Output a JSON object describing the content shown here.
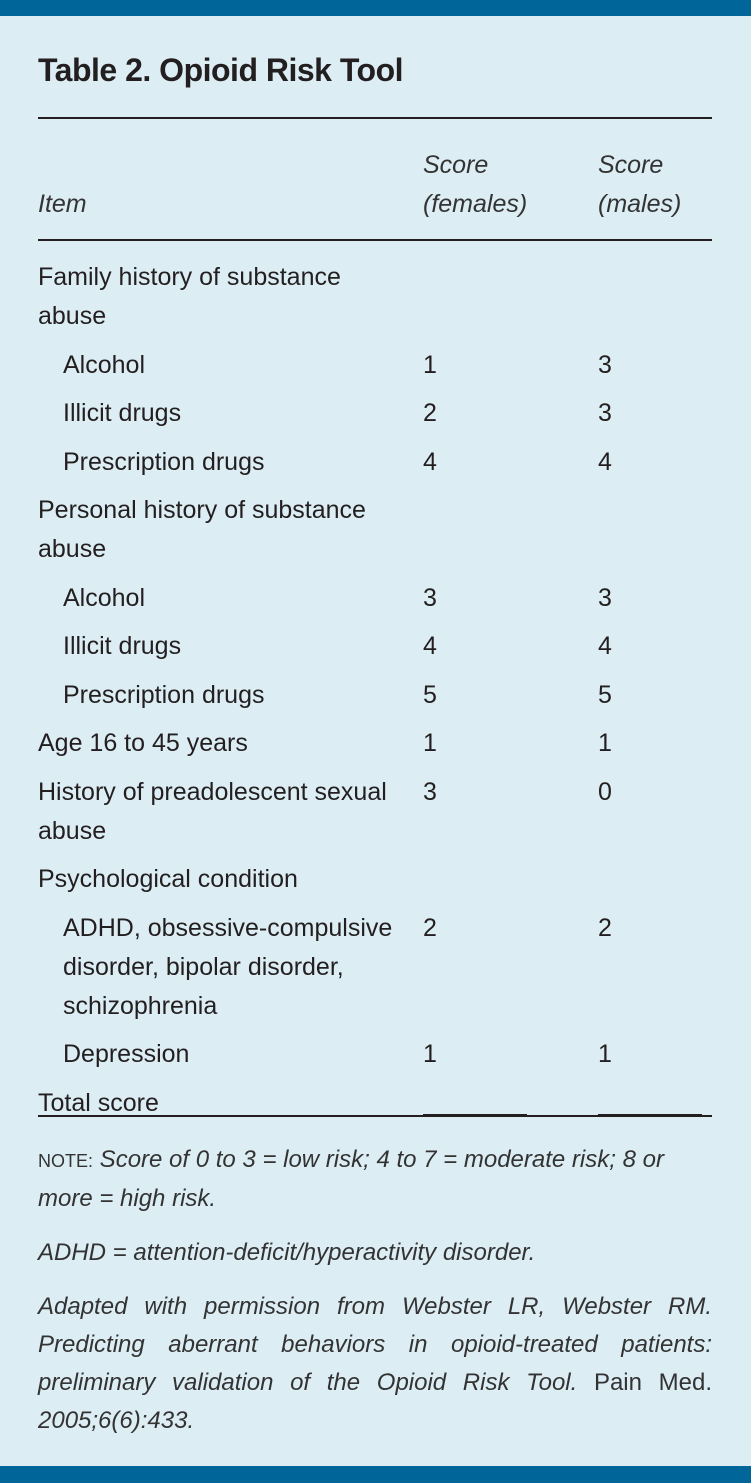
{
  "title": "Table 2. Opioid Risk Tool",
  "header": {
    "item": "Item",
    "female_1": "Score",
    "female_2": "(females)",
    "male_1": "Score",
    "male_2": "(males)"
  },
  "rows": [
    {
      "item": "Family history of substance abuse",
      "f": "",
      "m": "",
      "sub": false
    },
    {
      "item": "Alcohol",
      "f": "1",
      "m": "3",
      "sub": true
    },
    {
      "item": "Illicit drugs",
      "f": "2",
      "m": "3",
      "sub": true
    },
    {
      "item": "Prescription drugs",
      "f": "4",
      "m": "4",
      "sub": true
    },
    {
      "item": "Personal history of substance abuse",
      "f": "",
      "m": "",
      "sub": false
    },
    {
      "item": "Alcohol",
      "f": "3",
      "m": "3",
      "sub": true
    },
    {
      "item": "Illicit drugs",
      "f": "4",
      "m": "4",
      "sub": true
    },
    {
      "item": "Prescription drugs",
      "f": "5",
      "m": "5",
      "sub": true
    },
    {
      "item": "Age 16 to 45 years",
      "f": "1",
      "m": "1",
      "sub": false
    },
    {
      "item": "History of preadolescent sexual abuse",
      "f": "3",
      "m": "0",
      "sub": false
    },
    {
      "item": "Psychological condition",
      "f": "",
      "m": "",
      "sub": false
    },
    {
      "item": "ADHD, obsessive-compulsive disorder, bipolar disorder, schizophrenia",
      "f": "2",
      "m": "2",
      "sub": true
    },
    {
      "item": "Depression",
      "f": "1",
      "m": "1",
      "sub": true
    }
  ],
  "total_label": "Total score",
  "notes": {
    "note_label": "NOTE:",
    "note_text": " Score of 0 to 3 = low risk; 4 to 7 = moderate risk; 8 or more = high risk.",
    "abbrev": "ADHD = attention-deficit/hyperactivity disorder.",
    "source_1": "Adapted with permission from Webster LR, Webster RM. Predicting aberrant behaviors in opioid-treated patients: preliminary validation of the Opioid Risk Tool.",
    "source_2": " Pain Med.",
    "source_3": " 2005;6(6):433."
  },
  "colors": {
    "background": "#dcedf4",
    "band": "#006699"
  }
}
